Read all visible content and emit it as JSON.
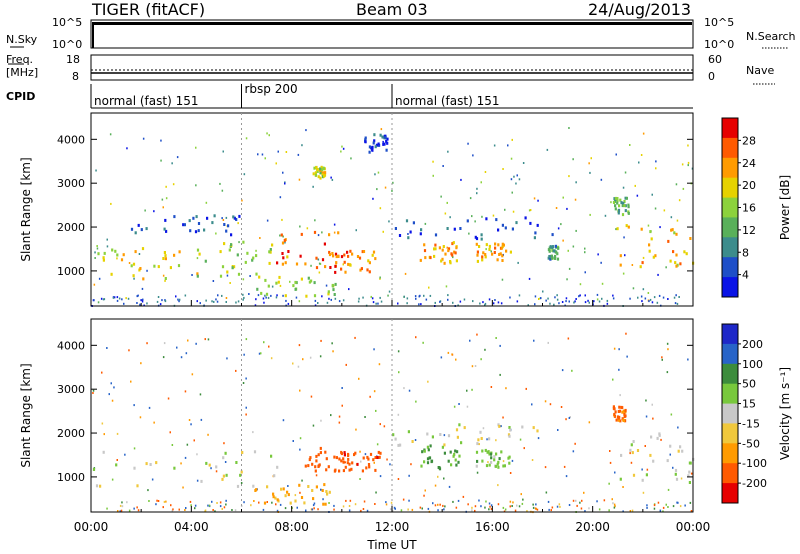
{
  "header": {
    "station": "TIGER (fitACF)",
    "beam": "Beam 03",
    "date": "24/Aug/2013"
  },
  "panels": {
    "nsky": {
      "label": "N.Sky",
      "left_ticks": [
        "10^5",
        "10^0"
      ],
      "right_label": "N.Search",
      "right_ticks": [
        "10^5",
        "10^0"
      ]
    },
    "freq": {
      "label_line1": "Freq.",
      "label_line2": "[MHz]",
      "left_ticks": [
        "18",
        "8"
      ],
      "right_label": "Nave",
      "right_ticks": [
        "60",
        "0"
      ]
    },
    "cpid": {
      "label": "CPID",
      "segments": [
        {
          "label": "normal (fast) 151",
          "start_hour": 0,
          "end_hour": 6
        },
        {
          "label": "rbsp 200",
          "start_hour": 6,
          "end_hour": 12
        },
        {
          "label": "normal (fast) 151",
          "start_hour": 12,
          "end_hour": 24
        }
      ]
    }
  },
  "chart_data": [
    {
      "type": "heatmap",
      "name": "power",
      "ylabel": "Slant Range [km]",
      "xlim": [
        0,
        24
      ],
      "ylim": [
        200,
        4600
      ],
      "yticks": [
        1000,
        2000,
        3000,
        4000
      ],
      "colorbar": {
        "label": "Power [dB]",
        "range": [
          0,
          32
        ],
        "ticks": [
          4,
          8,
          12,
          16,
          20,
          24,
          28
        ],
        "colors": [
          "#0a14e6",
          "#1e4fc8",
          "#3c8c8c",
          "#59b05a",
          "#8cd23c",
          "#e6d200",
          "#ff9b00",
          "#ff5a00",
          "#e60000"
        ]
      },
      "echo_regions": [
        {
          "t": [
            0,
            4.2
          ],
          "r": [
            850,
            1550
          ],
          "level": 22
        },
        {
          "t": [
            4.2,
            7.8
          ],
          "r": [
            900,
            1700
          ],
          "level": 18
        },
        {
          "t": [
            7.2,
            10.2
          ],
          "r": [
            1100,
            1950
          ],
          "level": 30
        },
        {
          "t": [
            9.5,
            11.3
          ],
          "r": [
            1000,
            1500
          ],
          "level": 28
        },
        {
          "t": [
            6.5,
            9.8
          ],
          "r": [
            450,
            900
          ],
          "level": 18
        },
        {
          "t": [
            1.5,
            6.2
          ],
          "r": [
            1850,
            2300
          ],
          "level": 6
        },
        {
          "t": [
            12,
            18.5
          ],
          "r": [
            1750,
            2250
          ],
          "level": 6
        },
        {
          "t": [
            13.1,
            14.7
          ],
          "r": [
            1200,
            1750
          ],
          "level": 26
        },
        {
          "t": [
            15.3,
            16.7
          ],
          "r": [
            1250,
            1650
          ],
          "level": 25
        },
        {
          "t": [
            18.2,
            18.6
          ],
          "r": [
            1300,
            1600
          ],
          "level": 12
        },
        {
          "t": [
            20.8,
            24
          ],
          "r": [
            1100,
            2100
          ],
          "level": 24
        },
        {
          "t": [
            20.8,
            21.4
          ],
          "r": [
            2300,
            2700
          ],
          "level": 14
        },
        {
          "t": [
            8.8,
            9.3
          ],
          "r": [
            3150,
            3400
          ],
          "level": 20
        },
        {
          "t": [
            10.8,
            11.8
          ],
          "r": [
            3700,
            4150
          ],
          "level": 5
        }
      ]
    },
    {
      "type": "heatmap",
      "name": "velocity",
      "ylabel": "Slant Range [km]",
      "xlabel": "Time UT",
      "xlim": [
        0,
        24
      ],
      "ylim": [
        200,
        4600
      ],
      "yticks": [
        1000,
        2000,
        3000,
        4000
      ],
      "xticks": [
        "00:00",
        "04:00",
        "08:00",
        "12:00",
        "16:00",
        "20:00",
        "00:00"
      ],
      "colorbar": {
        "label": "Velocity [m s⁻¹]",
        "ticks": [
          "200",
          "100",
          "50",
          "15",
          "-15",
          "-50",
          "-100",
          "-200"
        ],
        "colors": [
          "#1e28c8",
          "#2864c8",
          "#3c8c3c",
          "#78c83c",
          "#c8c8c8",
          "#f0c83c",
          "#ff9b00",
          "#ff5a00",
          "#e60000"
        ]
      },
      "echo_regions": [
        {
          "t": [
            0,
            7.5
          ],
          "r": [
            800,
            1650
          ],
          "level": 0
        },
        {
          "t": [
            6.5,
            9.5
          ],
          "r": [
            400,
            900
          ],
          "level": -60
        },
        {
          "t": [
            8.5,
            10.2
          ],
          "r": [
            1150,
            1750
          ],
          "level": -150
        },
        {
          "t": [
            10,
            11.5
          ],
          "r": [
            1150,
            1600
          ],
          "level": -180
        },
        {
          "t": [
            12,
            18.5
          ],
          "r": [
            1750,
            2250
          ],
          "level": 0
        },
        {
          "t": [
            13.1,
            14.7
          ],
          "r": [
            1200,
            1750
          ],
          "level": 60
        },
        {
          "t": [
            15.3,
            16.7
          ],
          "r": [
            1250,
            1650
          ],
          "level": 30
        },
        {
          "t": [
            20.8,
            24
          ],
          "r": [
            900,
            2100
          ],
          "level": 0
        },
        {
          "t": [
            20.8,
            21.3
          ],
          "r": [
            2300,
            2650
          ],
          "level": -120
        }
      ]
    }
  ]
}
